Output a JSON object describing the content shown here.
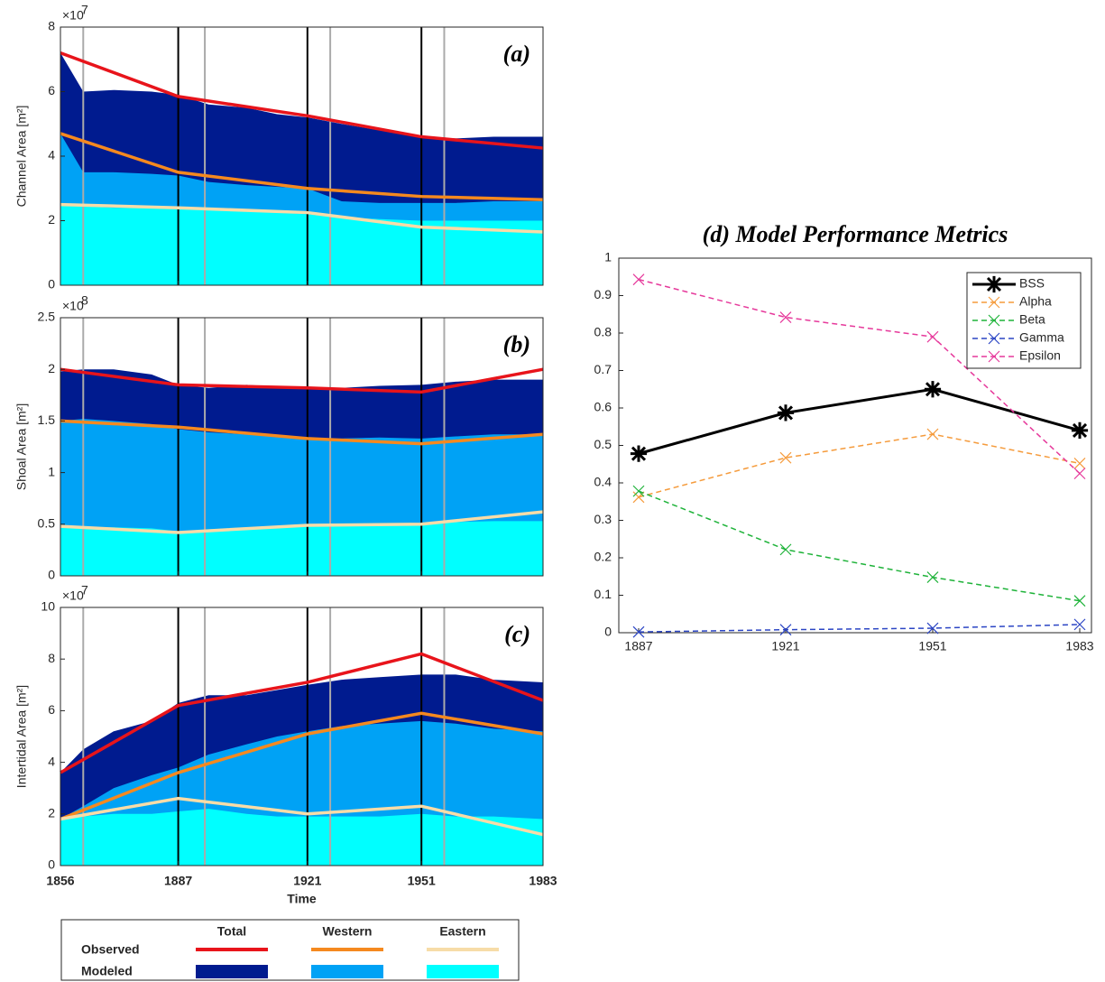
{
  "chart_data": [
    {
      "type": "area",
      "panel_label": "(a)",
      "ylabel": "Channel Area [m²]",
      "y_multiplier": "×10",
      "y_multiplier_power": "7",
      "xlim": [
        1856,
        1983
      ],
      "xticks": [
        1856,
        1887,
        1921,
        1951,
        1983
      ],
      "ylim": [
        0,
        8
      ],
      "yticks": [
        0,
        2,
        4,
        6,
        8
      ],
      "black_lines": [
        1887,
        1921,
        1951
      ],
      "gray_lines": [
        1862,
        1894,
        1927,
        1957
      ],
      "x_observed": [
        1856,
        1887,
        1921,
        1951,
        1983
      ],
      "observed": [
        [
          7.2,
          5.85,
          5.25,
          4.6,
          4.25
        ],
        [
          4.7,
          3.5,
          3.0,
          2.75,
          2.65
        ],
        [
          2.5,
          2.4,
          2.25,
          1.8,
          1.65
        ]
      ],
      "x_modeled": [
        1856,
        1862,
        1870,
        1880,
        1887,
        1895,
        1905,
        1913,
        1921,
        1930,
        1940,
        1951,
        1960,
        1970,
        1983
      ],
      "modeled": [
        [
          7.2,
          6.0,
          6.05,
          6.0,
          5.9,
          5.6,
          5.5,
          5.3,
          5.2,
          5.0,
          4.8,
          4.6,
          4.55,
          4.6,
          4.6
        ],
        [
          4.7,
          3.5,
          3.5,
          3.45,
          3.4,
          3.2,
          3.1,
          3.05,
          3.0,
          2.6,
          2.55,
          2.55,
          2.55,
          2.6,
          2.6
        ],
        [
          2.5,
          2.45,
          2.4,
          2.4,
          2.35,
          2.35,
          2.3,
          2.25,
          2.2,
          2.1,
          2.05,
          2.0,
          2.0,
          2.0,
          2.0
        ]
      ]
    },
    {
      "type": "area",
      "panel_label": "(b)",
      "ylabel": "Shoal Area [m²]",
      "y_multiplier": "×10",
      "y_multiplier_power": "8",
      "xlim": [
        1856,
        1983
      ],
      "xticks": [
        1856,
        1887,
        1921,
        1951,
        1983
      ],
      "ylim": [
        0,
        2.5
      ],
      "yticks": [
        0,
        0.5,
        1,
        1.5,
        2,
        2.5
      ],
      "black_lines": [
        1887,
        1921,
        1951
      ],
      "gray_lines": [
        1862,
        1894,
        1927,
        1957
      ],
      "x_observed": [
        1856,
        1887,
        1921,
        1951,
        1983
      ],
      "observed": [
        [
          2.0,
          1.85,
          1.82,
          1.78,
          2.0
        ],
        [
          1.5,
          1.44,
          1.33,
          1.28,
          1.37
        ],
        [
          0.48,
          0.42,
          0.49,
          0.5,
          0.62
        ]
      ],
      "x_modeled": [
        1856,
        1862,
        1870,
        1880,
        1887,
        1895,
        1905,
        1913,
        1921,
        1930,
        1940,
        1951,
        1960,
        1970,
        1983
      ],
      "modeled": [
        [
          1.98,
          2.0,
          2.0,
          1.95,
          1.85,
          1.82,
          1.85,
          1.83,
          1.82,
          1.82,
          1.84,
          1.85,
          1.88,
          1.9,
          1.9
        ],
        [
          1.5,
          1.52,
          1.5,
          1.47,
          1.42,
          1.39,
          1.37,
          1.35,
          1.33,
          1.33,
          1.34,
          1.33,
          1.35,
          1.37,
          1.37
        ],
        [
          0.48,
          0.47,
          0.47,
          0.46,
          0.43,
          0.45,
          0.47,
          0.48,
          0.49,
          0.49,
          0.5,
          0.51,
          0.52,
          0.53,
          0.53
        ]
      ]
    },
    {
      "type": "area",
      "panel_label": "(c)",
      "ylabel": "Intertidal Area [m²]",
      "y_multiplier": "×10",
      "y_multiplier_power": "7",
      "xlabel": "Time",
      "show_xtick_labels": true,
      "xlim": [
        1856,
        1983
      ],
      "xticks": [
        1856,
        1887,
        1921,
        1951,
        1983
      ],
      "ylim": [
        0,
        10
      ],
      "yticks": [
        0,
        2,
        4,
        6,
        8,
        10
      ],
      "black_lines": [
        1887,
        1921,
        1951
      ],
      "gray_lines": [
        1862,
        1894,
        1927,
        1957
      ],
      "x_observed": [
        1856,
        1887,
        1921,
        1951,
        1983
      ],
      "observed": [
        [
          3.6,
          6.2,
          7.1,
          8.2,
          6.4
        ],
        [
          1.8,
          3.6,
          5.1,
          5.9,
          5.1
        ],
        [
          1.8,
          2.6,
          2.0,
          2.3,
          1.2
        ]
      ],
      "x_modeled": [
        1856,
        1862,
        1870,
        1880,
        1887,
        1895,
        1905,
        1913,
        1921,
        1930,
        1940,
        1951,
        1960,
        1970,
        1983
      ],
      "modeled": [
        [
          3.6,
          4.5,
          5.2,
          5.6,
          6.3,
          6.6,
          6.6,
          6.8,
          7.0,
          7.2,
          7.3,
          7.4,
          7.4,
          7.2,
          7.1
        ],
        [
          1.8,
          2.3,
          3.0,
          3.5,
          3.8,
          4.3,
          4.7,
          5.0,
          5.2,
          5.4,
          5.5,
          5.6,
          5.5,
          5.3,
          5.2
        ],
        [
          1.8,
          1.9,
          2.0,
          2.0,
          2.1,
          2.2,
          2.0,
          1.9,
          1.9,
          1.9,
          1.9,
          2.0,
          1.9,
          1.9,
          1.8
        ]
      ]
    },
    {
      "type": "line",
      "title": "(d) Model Performance Metrics",
      "categories": [
        "1887",
        "1921",
        "1951",
        "1983"
      ],
      "ylim": [
        0,
        1
      ],
      "yticks": [
        0,
        0.1,
        0.2,
        0.3,
        0.4,
        0.5,
        0.6,
        0.7,
        0.8,
        0.9,
        1
      ],
      "legend": "northeast",
      "series": [
        {
          "name": "BSS",
          "color": "#000000",
          "dashed": false,
          "marker": "asterisk",
          "values": [
            0.478,
            0.587,
            0.65,
            0.54
          ]
        },
        {
          "name": "Alpha",
          "color": "#f59b3c",
          "dashed": true,
          "marker": "x",
          "values": [
            0.362,
            0.467,
            0.53,
            0.452
          ]
        },
        {
          "name": "Beta",
          "color": "#1fb33a",
          "dashed": true,
          "marker": "x",
          "values": [
            0.378,
            0.222,
            0.148,
            0.085
          ]
        },
        {
          "name": "Gamma",
          "color": "#2b45c4",
          "dashed": true,
          "marker": "x",
          "values": [
            0.002,
            0.008,
            0.012,
            0.022
          ]
        },
        {
          "name": "Epsilon",
          "color": "#e6399b",
          "dashed": true,
          "marker": "x",
          "values": [
            0.943,
            0.842,
            0.79,
            0.425
          ]
        }
      ]
    }
  ],
  "legend": {
    "columns": [
      "Total",
      "Western",
      "Eastern"
    ],
    "rows": [
      "Observed",
      "Modeled"
    ],
    "observed_colors": [
      "#e8141b",
      "#f5891f",
      "#f7dca8"
    ],
    "modeled_colors": [
      "#001b8f",
      "#00a2f5",
      "#00ffff"
    ]
  }
}
